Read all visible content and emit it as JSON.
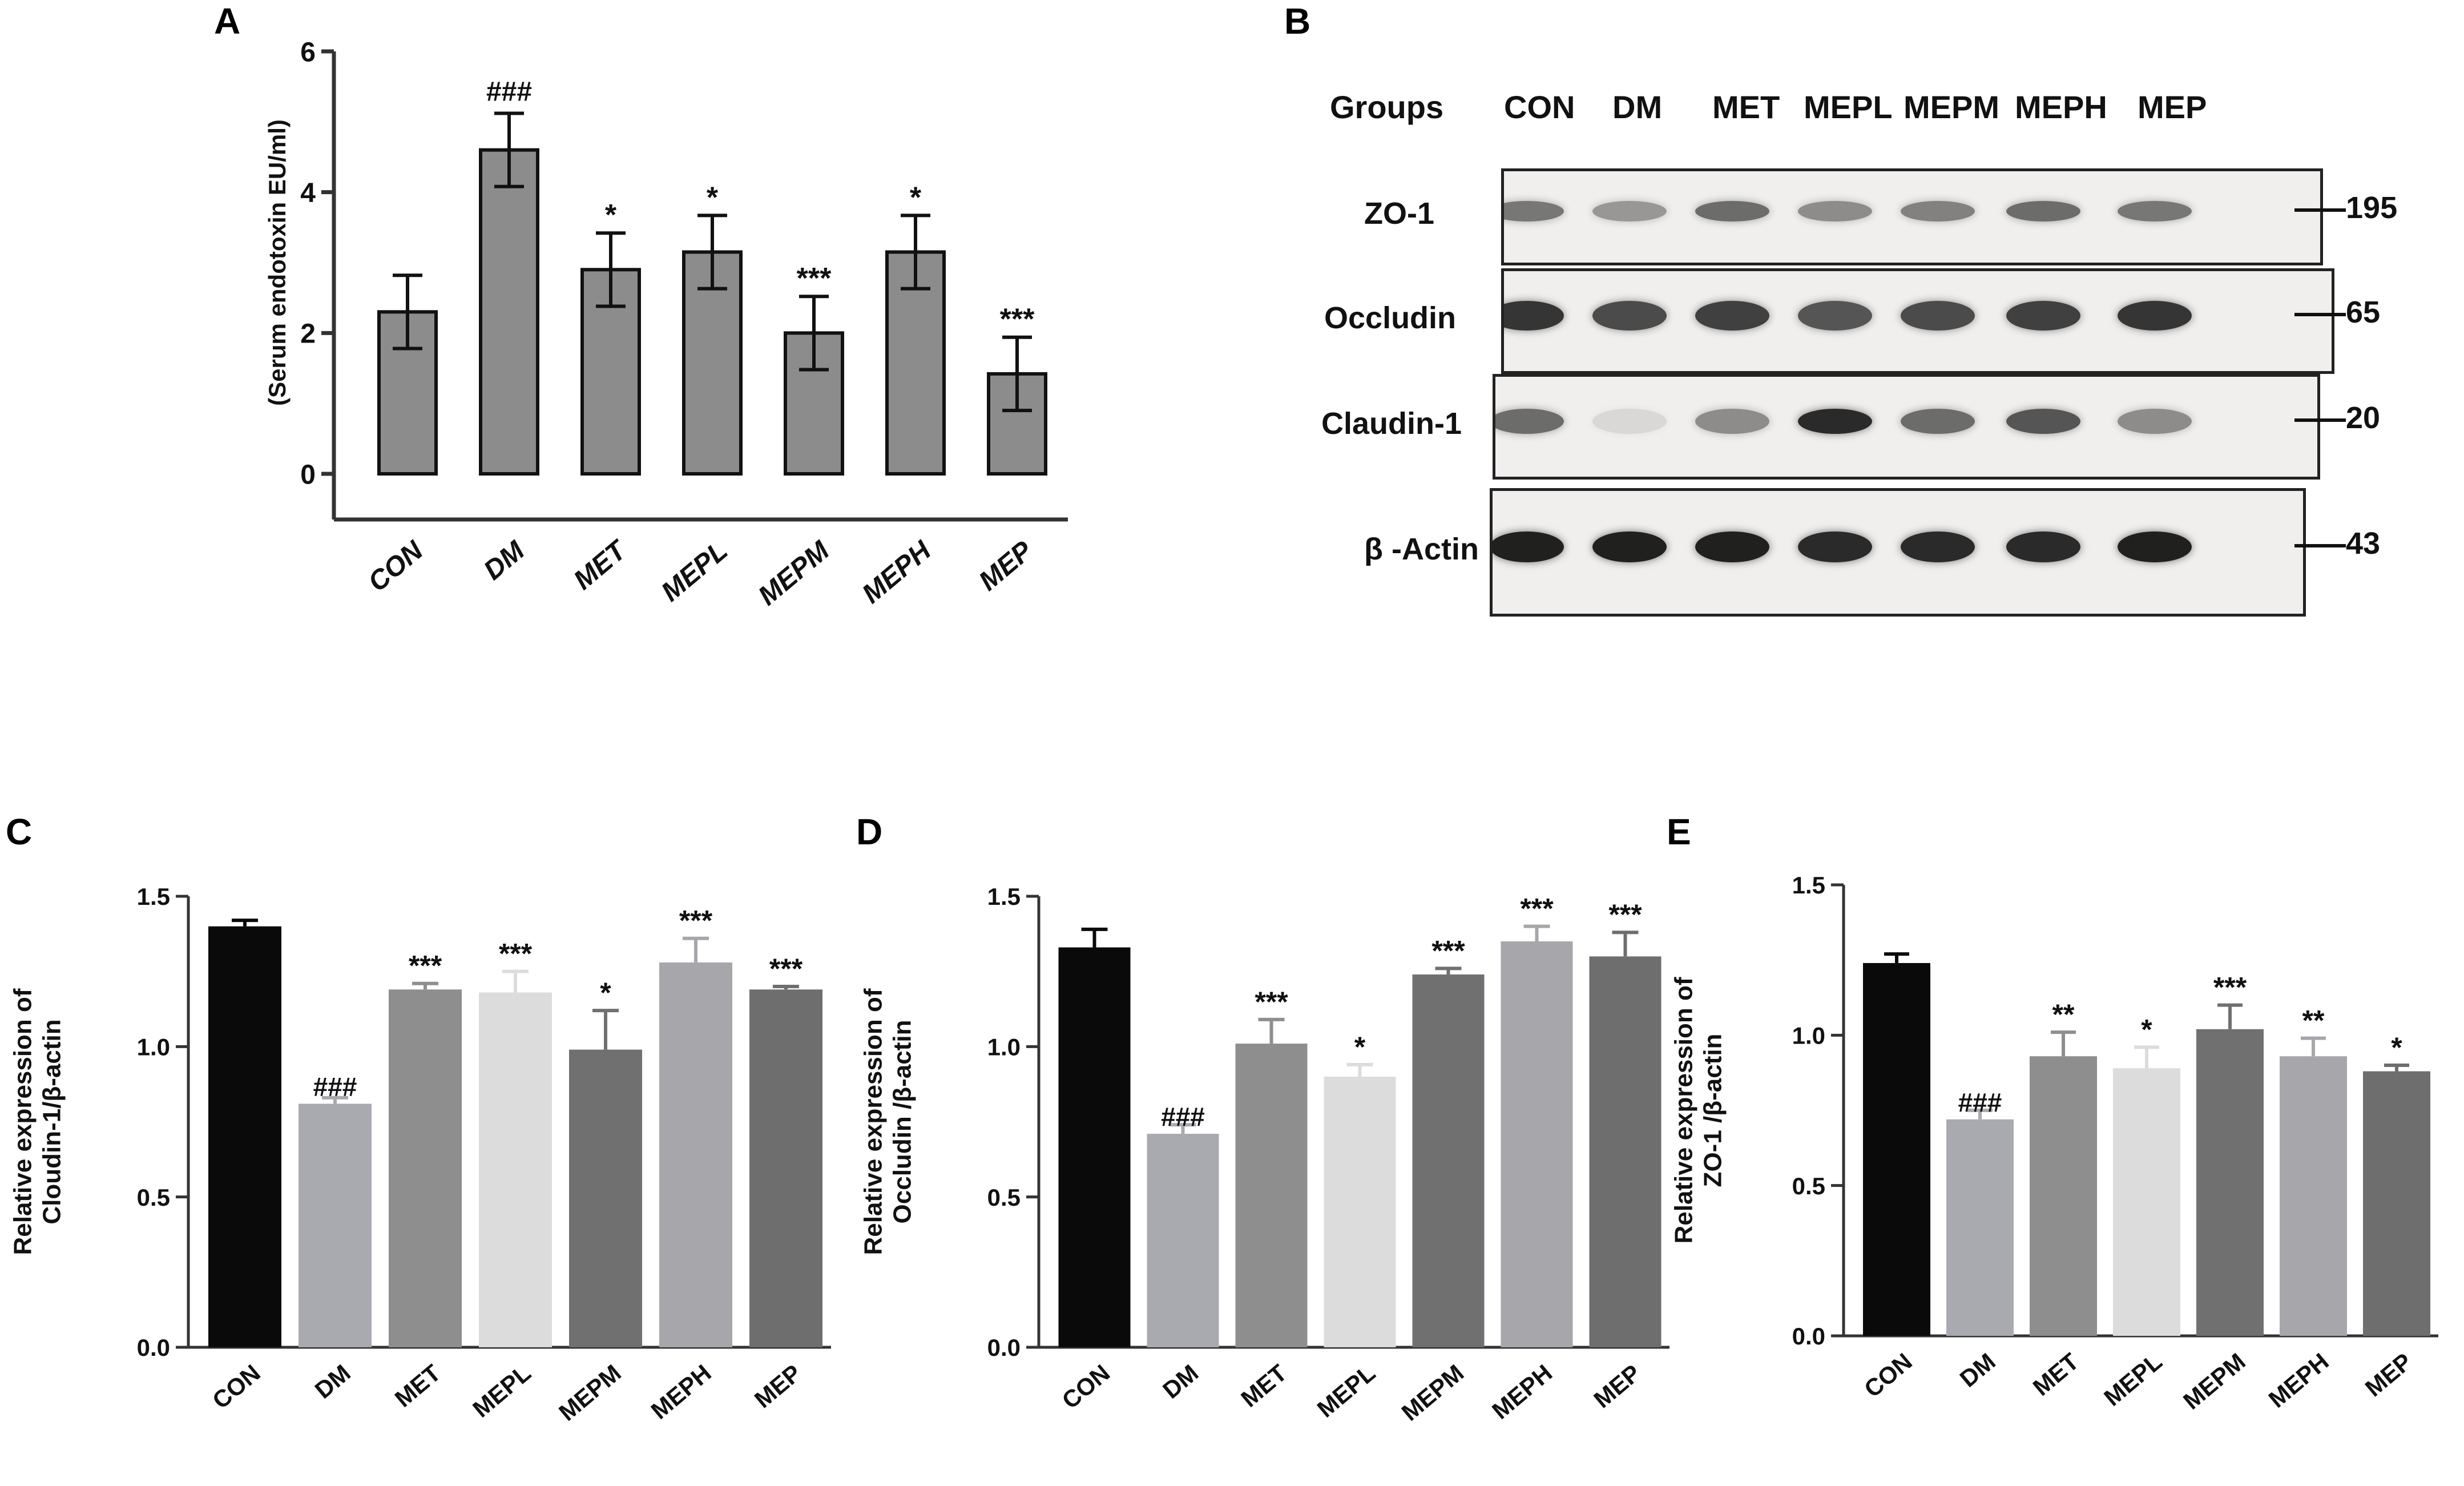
{
  "panel_letters": [
    "A",
    "B",
    "C",
    "D",
    "E"
  ],
  "groups": [
    "CON",
    "DM",
    "MET",
    "MEPL",
    "MEPM",
    "MEPH",
    "MEP"
  ],
  "colors": {
    "grey_bar": "#8c8c8c",
    "bar_CON": "#0a0a0a",
    "bar_DM": "#a9a9b0",
    "bar_MET": "#8e8e8e",
    "bar_MEPL": "#dcdcdc",
    "bar_MEPM": "#707070",
    "bar_MEPH": "#a7a7ab",
    "bar_MEP": "#6e6e6e"
  },
  "chart_data": [
    {
      "panel": "A",
      "type": "bar",
      "ylabel": "(Serum endotoxin EU/ml)",
      "categories": [
        "CON",
        "DM",
        "MET",
        "MEPL",
        "MEPM",
        "MEPH",
        "MEP"
      ],
      "values": [
        2.3,
        4.6,
        2.9,
        3.15,
        2.0,
        3.15,
        1.42
      ],
      "errors": [
        0.52,
        0.52,
        0.52,
        0.52,
        0.52,
        0.52,
        0.52
      ],
      "annotations": [
        "",
        "###",
        "*",
        "*",
        "***",
        "*",
        "***"
      ],
      "ylim": [
        0,
        6
      ],
      "yticks": [
        "0",
        "2",
        "4",
        "6"
      ],
      "ytick_values": [
        0,
        2,
        4,
        6
      ]
    },
    {
      "panel": "C",
      "type": "bar",
      "ylabel": "Relative expression of Cloudin-1/β-actin",
      "categories": [
        "CON",
        "DM",
        "MET",
        "MEPL",
        "MEPM",
        "MEPH",
        "MEP"
      ],
      "values": [
        1.4,
        0.81,
        1.19,
        1.18,
        0.99,
        1.28,
        1.19
      ],
      "errors": [
        0.02,
        0.02,
        0.02,
        0.07,
        0.13,
        0.08,
        0.01
      ],
      "annotations": [
        "",
        "###",
        "***",
        "***",
        "*",
        "***",
        "***"
      ],
      "ylim": [
        0,
        1.5
      ],
      "yticks": [
        "0.0",
        "0.5",
        "1.0",
        "1.5"
      ],
      "ytick_values": [
        0,
        0.5,
        1.0,
        1.5
      ]
    },
    {
      "panel": "D",
      "type": "bar",
      "ylabel": "Relative expression of Occludin /β-actin",
      "categories": [
        "CON",
        "DM",
        "MET",
        "MEPL",
        "MEPM",
        "MEPH",
        "MEP"
      ],
      "values": [
        1.33,
        0.71,
        1.01,
        0.9,
        1.24,
        1.35,
        1.3
      ],
      "errors": [
        0.06,
        0.03,
        0.08,
        0.04,
        0.02,
        0.05,
        0.08
      ],
      "annotations": [
        "",
        "###",
        "***",
        "*",
        "***",
        "***",
        "***"
      ],
      "ylim": [
        0,
        1.5
      ],
      "yticks": [
        "0.0",
        "0.5",
        "1.0",
        "1.5"
      ],
      "ytick_values": [
        0,
        0.5,
        1.0,
        1.5
      ]
    },
    {
      "panel": "E",
      "type": "bar",
      "ylabel": "Relative expression of ZO-1 /β-actin",
      "categories": [
        "CON",
        "DM",
        "MET",
        "MEPL",
        "MEPM",
        "MEPH",
        "MEP"
      ],
      "values": [
        1.24,
        0.72,
        0.93,
        0.89,
        1.02,
        0.93,
        0.88
      ],
      "errors": [
        0.03,
        0.03,
        0.08,
        0.07,
        0.08,
        0.06,
        0.02
      ],
      "annotations": [
        "",
        "###",
        "**",
        "*",
        "***",
        "**",
        "*"
      ],
      "ylim": [
        0,
        1.5
      ],
      "yticks": [
        "0.0",
        "0.5",
        "1.0",
        "1.5"
      ],
      "ytick_values": [
        0,
        0.5,
        1.0,
        1.5
      ]
    }
  ],
  "western_blot": {
    "header_label": "Groups",
    "lane_labels": [
      "CON",
      "DM",
      "MET",
      "MEPL",
      "MEPM",
      "MEPH",
      "MEP"
    ],
    "rows": [
      {
        "protein": "ZO-1",
        "mw": "195",
        "intensities": [
          0.55,
          0.4,
          0.6,
          0.45,
          0.5,
          0.6,
          0.55
        ]
      },
      {
        "protein": "Occludin",
        "mw": "65",
        "intensities": [
          0.85,
          0.75,
          0.8,
          0.7,
          0.75,
          0.8,
          0.85
        ]
      },
      {
        "protein": "Claudin-1",
        "mw": "20",
        "intensities": [
          0.6,
          0.1,
          0.45,
          0.9,
          0.6,
          0.7,
          0.45
        ]
      },
      {
        "protein": "β -Actin",
        "mw": "43",
        "intensities": [
          0.95,
          0.95,
          0.95,
          0.9,
          0.9,
          0.9,
          0.95
        ]
      }
    ]
  }
}
